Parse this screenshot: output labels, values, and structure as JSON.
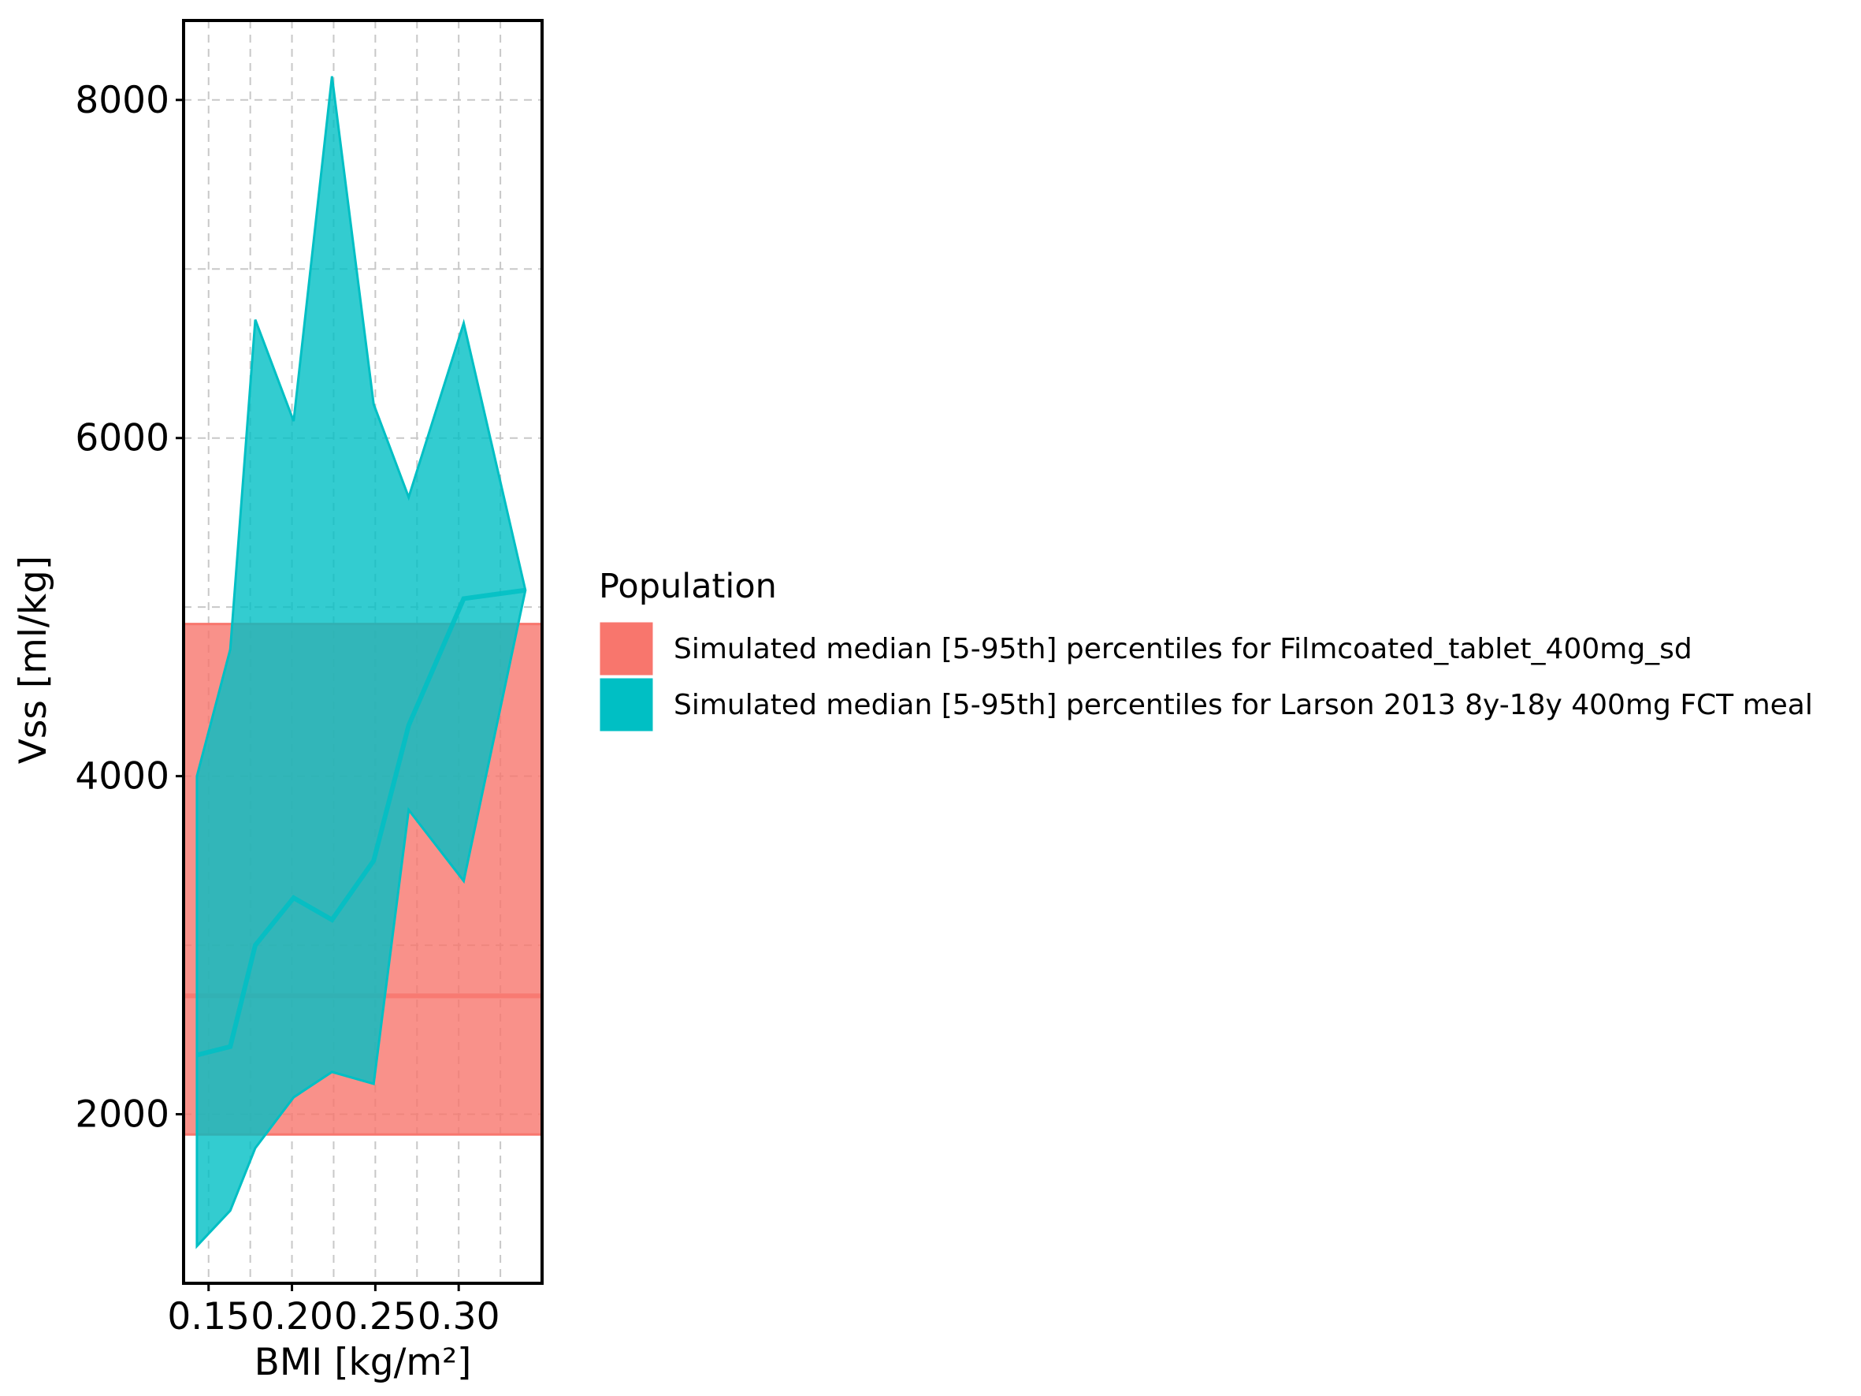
{
  "chart_data": {
    "type": "area",
    "xlabel": "BMI [kg/m²]",
    "ylabel": "Vss [ml/kg]",
    "xlim": [
      0.135,
      0.35
    ],
    "ylim": [
      1000,
      8470
    ],
    "x_ticks": [
      0.15,
      0.2,
      0.25,
      0.3
    ],
    "x_tick_labels": [
      "0.15",
      "0.20",
      "0.25",
      "0.30"
    ],
    "x_minor_ticks": [
      0.175,
      0.225,
      0.275,
      0.325
    ],
    "y_ticks": [
      2000,
      4000,
      6000,
      8000
    ],
    "y_tick_labels": [
      "2000",
      "4000",
      "6000",
      "8000"
    ],
    "y_minor_ticks": [
      1000,
      3000,
      5000,
      7000
    ],
    "grid": true,
    "legend": {
      "title": "Population",
      "position": "right"
    },
    "series": [
      {
        "name": "Simulated median [5-95th] percentiles for Filmcoated_tablet_400mg_sd",
        "color": "#F8766D",
        "x": [
          0.135,
          0.35
        ],
        "median": [
          2700,
          2700
        ],
        "lower": [
          1880,
          1880
        ],
        "upper": [
          4900,
          4900
        ]
      },
      {
        "name": "Simulated median [5-95th] percentiles for Larson 2013 8y-18y 400mg FCT meal",
        "color": "#00BFC4",
        "x": [
          0.143,
          0.163,
          0.178,
          0.201,
          0.224,
          0.249,
          0.27,
          0.303,
          0.34
        ],
        "median": [
          2350,
          2400,
          3000,
          3280,
          3150,
          3500,
          4300,
          5050,
          5100
        ],
        "lower": [
          1220,
          1430,
          1800,
          2100,
          2250,
          2180,
          3800,
          3380,
          5100
        ],
        "upper": [
          4000,
          4750,
          6700,
          6100,
          8140,
          6200,
          5650,
          6680,
          5100
        ]
      }
    ]
  }
}
